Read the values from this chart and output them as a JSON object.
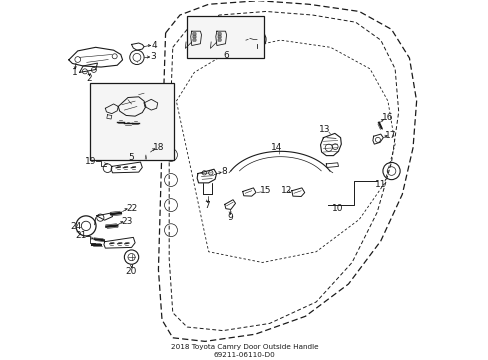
{
  "title": "2018 Toyota Camry Door Outside Handle\n69211-06110-D0",
  "background_color": "#ffffff",
  "line_color": "#1a1a1a",
  "figure_size": [
    4.89,
    3.6
  ],
  "dpi": 100,
  "door_outer": {
    "x": [
      0.3,
      0.37,
      0.5,
      0.65,
      0.8,
      0.9,
      0.95,
      0.97,
      0.96,
      0.93,
      0.87,
      0.78,
      0.65,
      0.5,
      0.37,
      0.3,
      0.27,
      0.27
    ],
    "y": [
      0.96,
      0.98,
      0.99,
      0.99,
      0.97,
      0.93,
      0.86,
      0.75,
      0.62,
      0.48,
      0.35,
      0.22,
      0.12,
      0.07,
      0.06,
      0.08,
      0.15,
      0.96
    ]
  },
  "door_inner": {
    "x": [
      0.33,
      0.4,
      0.52,
      0.66,
      0.78,
      0.86,
      0.9,
      0.91,
      0.89,
      0.84,
      0.75,
      0.63,
      0.5,
      0.38,
      0.33,
      0.31,
      0.31
    ],
    "y": [
      0.91,
      0.94,
      0.95,
      0.95,
      0.93,
      0.88,
      0.81,
      0.72,
      0.58,
      0.44,
      0.3,
      0.18,
      0.12,
      0.1,
      0.12,
      0.2,
      0.91
    ]
  },
  "window_line": {
    "x": [
      0.33,
      0.4,
      0.55,
      0.7,
      0.83,
      0.89,
      0.91,
      0.88,
      0.8,
      0.67,
      0.52,
      0.38,
      0.33
    ],
    "y": [
      0.75,
      0.82,
      0.86,
      0.86,
      0.82,
      0.74,
      0.63,
      0.52,
      0.42,
      0.34,
      0.3,
      0.34,
      0.75
    ]
  }
}
